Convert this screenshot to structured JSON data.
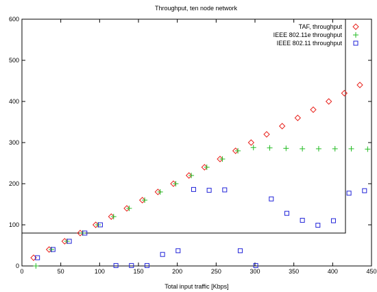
{
  "chart_data": {
    "type": "scatter",
    "title": "Throughput, ten node network",
    "xlabel": "Total input traffic [Kbps]",
    "ylabel": "",
    "xlim": [
      0,
      450
    ],
    "ylim": [
      0,
      600
    ],
    "xticks": [
      0,
      50,
      100,
      150,
      200,
      250,
      300,
      350,
      400,
      450
    ],
    "yticks": [
      0,
      100,
      200,
      300,
      400,
      500,
      600
    ],
    "grid": false,
    "legend_position": "top-right",
    "series": [
      {
        "name": "TAF, throughput",
        "marker": "diamond",
        "color": "#e8231d",
        "x": [
          15,
          35,
          55,
          75,
          95,
          115,
          135,
          155,
          175,
          195,
          215,
          235,
          255,
          275,
          295,
          315,
          335,
          355,
          375,
          395,
          415,
          435
        ],
        "y": [
          20,
          40,
          60,
          80,
          100,
          120,
          140,
          160,
          180,
          200,
          220,
          240,
          260,
          280,
          300,
          320,
          340,
          360,
          380,
          400,
          420,
          440
        ]
      },
      {
        "name": "IEEE 802.11e throughput",
        "marker": "plus",
        "color": "#22bb22",
        "x": [
          18,
          38,
          58,
          78,
          98,
          118,
          138,
          158,
          178,
          198,
          218,
          238,
          258,
          278,
          298,
          319,
          340,
          361,
          382,
          403,
          424,
          445
        ],
        "y": [
          0,
          40,
          60,
          80,
          100,
          120,
          140,
          160,
          180,
          200,
          220,
          240,
          260,
          280,
          288,
          287,
          286,
          285,
          285,
          285,
          285,
          284
        ]
      },
      {
        "name": "IEEE 802.11 throughput",
        "marker": "square",
        "color": "#1f22d8",
        "x": [
          20,
          40,
          61,
          81,
          101,
          121,
          141,
          161,
          181,
          201,
          221,
          241,
          261,
          281,
          301,
          321,
          341,
          361,
          381,
          401,
          421,
          441
        ],
        "y": [
          20,
          40,
          60,
          80,
          100,
          1,
          1,
          1,
          28,
          37,
          186,
          184,
          185,
          37,
          1,
          163,
          128,
          111,
          99,
          110,
          177,
          183
        ]
      }
    ]
  }
}
